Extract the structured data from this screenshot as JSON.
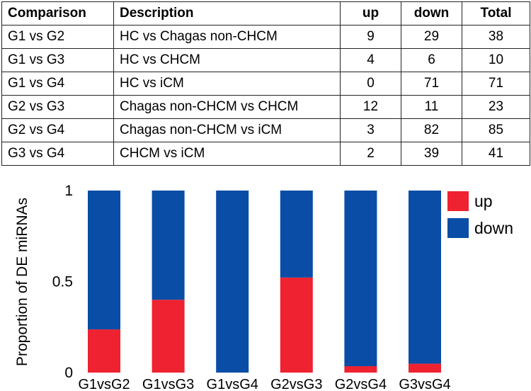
{
  "table": {
    "headers": [
      "Comparison",
      "Description",
      "up",
      "down",
      "Total"
    ],
    "rows": [
      [
        "G1 vs G2",
        "HC vs Chagas non-CHCM",
        "9",
        "29",
        "38"
      ],
      [
        "G1 vs G3",
        "HC vs CHCM",
        "4",
        "6",
        "10"
      ],
      [
        "G1 vs G4",
        "HC vs iCM",
        "0",
        "71",
        "71"
      ],
      [
        "G2 vs G3",
        "Chagas non-CHCM vs CHCM",
        "12",
        "11",
        "23"
      ],
      [
        "G2 vs G4",
        "Chagas non-CHCM vs iCM",
        "3",
        "82",
        "85"
      ],
      [
        "G3 vs G4",
        "CHCM vs iCM",
        "2",
        "39",
        "41"
      ]
    ]
  },
  "chart_data": {
    "type": "bar",
    "stacked": true,
    "categories": [
      "G1vsG2",
      "G1vsG3",
      "G1vsG4",
      "G2vsG3",
      "G2vsG4",
      "G3vsG4"
    ],
    "series": [
      {
        "name": "up",
        "color": "#ee2230",
        "values": [
          0.237,
          0.4,
          0.0,
          0.522,
          0.035,
          0.049
        ]
      },
      {
        "name": "down",
        "color": "#0a4da6",
        "values": [
          0.763,
          0.6,
          1.0,
          0.478,
          0.965,
          0.951
        ]
      }
    ],
    "ylabel": "Proportion of DE miRNAs",
    "yticks": [
      "0",
      "0.5",
      "1"
    ],
    "ylim": [
      0,
      1
    ],
    "grid": false,
    "legend": "top-right"
  }
}
